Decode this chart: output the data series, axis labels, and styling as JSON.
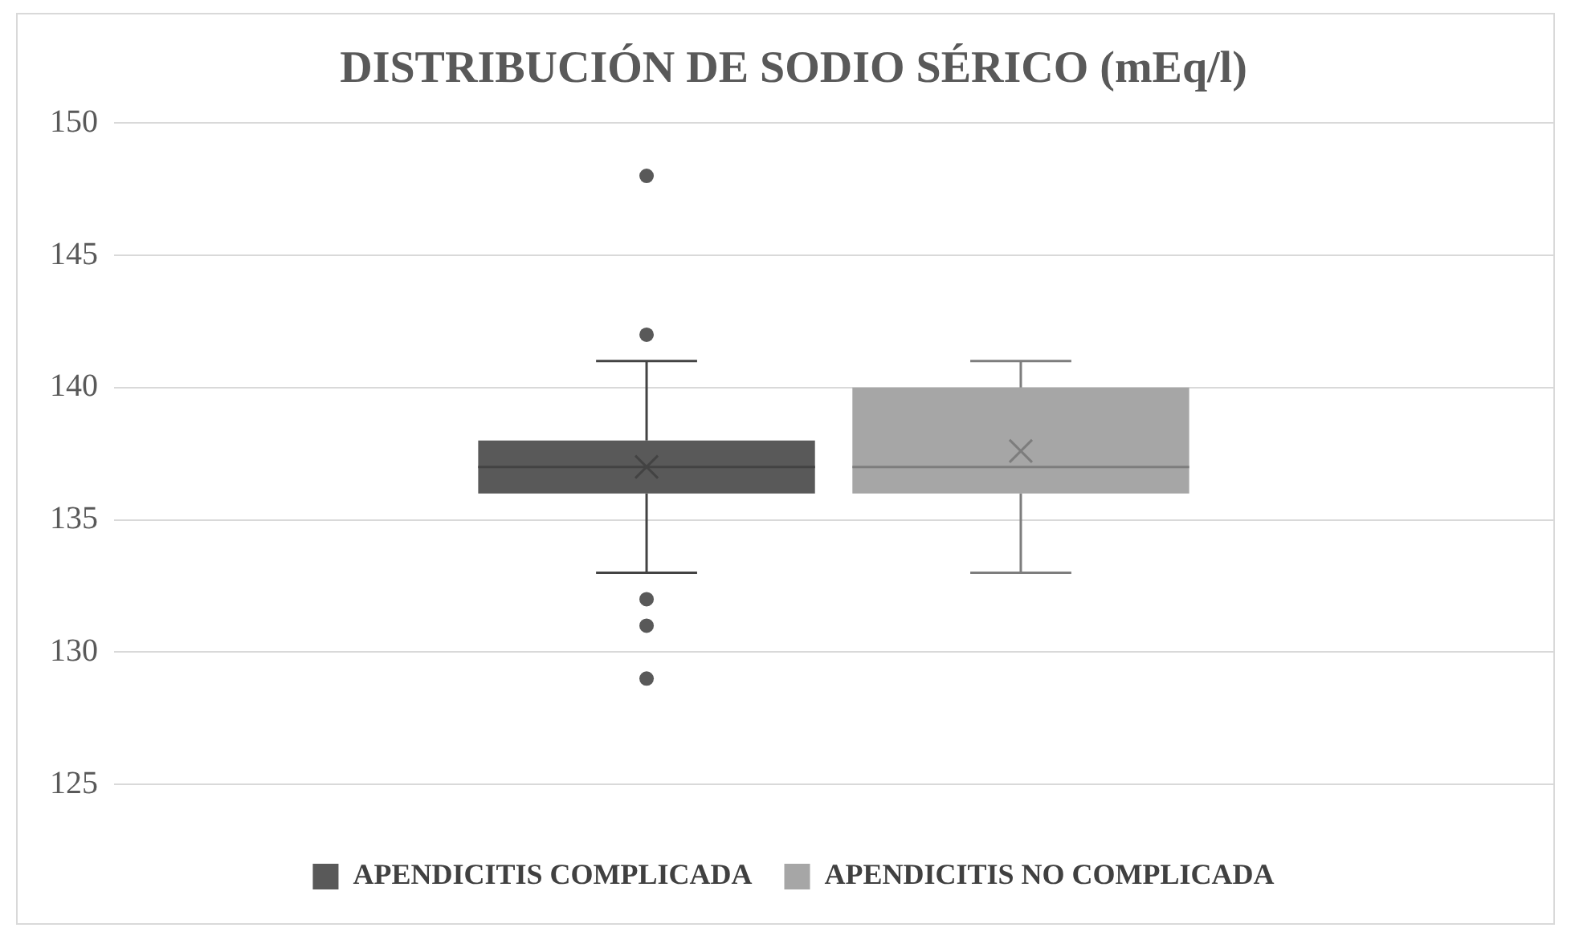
{
  "chart_data": {
    "type": "box",
    "title": "DISTRIBUCIÓN DE SODIO SÉRICO (mEq/l)",
    "categories": [
      null
    ],
    "series": [
      {
        "name": "APENDICITIS COMPLICADA",
        "color": "#595959",
        "boxes": [
          {
            "low": 133,
            "q1": 136,
            "median": 137,
            "q3": 138,
            "high": 141,
            "mean": 137,
            "outliers": [
              148,
              142,
              132,
              131,
              129
            ]
          }
        ]
      },
      {
        "name": "APENDICITIS NO COMPLICADA",
        "color": "#a6a6a6",
        "boxes": [
          {
            "low": 133,
            "q1": 136,
            "median": 137,
            "q3": 140,
            "high": 141,
            "mean": 137.6
          }
        ]
      }
    ],
    "ylim": [
      125,
      150
    ],
    "yticks": [
      125,
      130,
      135,
      140,
      145,
      150
    ],
    "grid": "y",
    "legend": "bottom",
    "marker": "circle"
  }
}
